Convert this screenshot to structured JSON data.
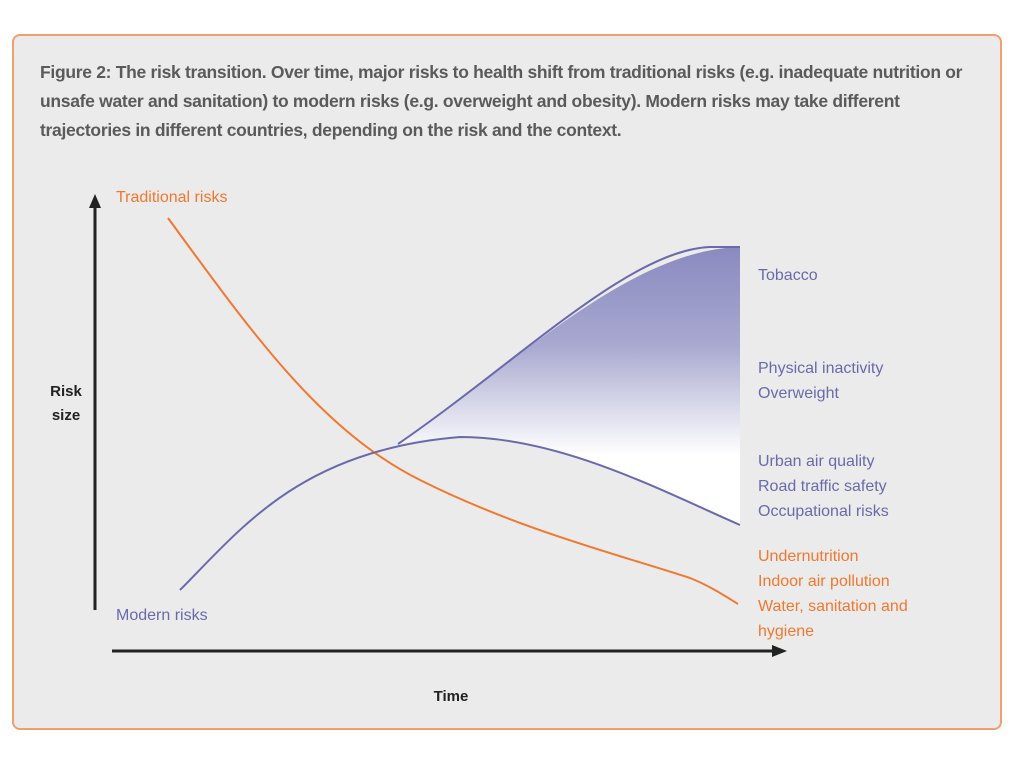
{
  "caption": "Figure 2: The risk transition. Over time, major risks to health shift from traditional risks (e.g. inadequate nutrition or unsafe water and sanitation) to modern risks (e.g. overweight and obesity). Modern risks may take different trajectories in different countries, depending on the risk and the context.",
  "axes": {
    "y_label_line1": "Risk",
    "y_label_line2": "size",
    "x_label": "Time"
  },
  "curves": {
    "traditional_label": "Traditional risks",
    "modern_label": "Modern risks"
  },
  "right_labels": {
    "tobacco": "Tobacco",
    "physical_inactivity": "Physical inactivity",
    "overweight": "Overweight",
    "urban_air": "Urban air quality",
    "road_traffic": "Road traffic safety",
    "occupational": "Occupational risks",
    "undernutrition": "Undernutrition",
    "indoor_air": "Indoor air pollution",
    "water_line1": "Water, sanitation and",
    "water_line2": "hygiene"
  },
  "colors": {
    "traditional": "#f07830",
    "modern": "#6a6aaa",
    "fan_gradient_top": "#8a8ac0",
    "border": "#f0a070",
    "background": "#ebebeb"
  }
}
